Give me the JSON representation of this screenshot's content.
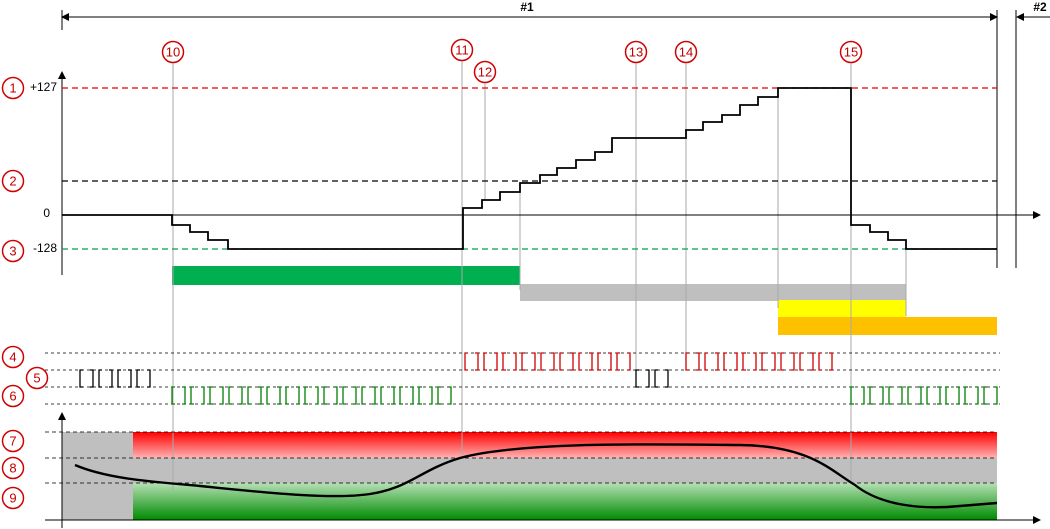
{
  "header": {
    "section_1": "#1",
    "section_2": "#2"
  },
  "axis_labels": {
    "max": "+127",
    "zero": "0",
    "min": "-128"
  },
  "left_callouts": [
    "1",
    "2",
    "3",
    "4",
    "5",
    "6",
    "7",
    "8",
    "9"
  ],
  "top_callouts": [
    "10",
    "11",
    "12",
    "13",
    "14",
    "15"
  ]
}
